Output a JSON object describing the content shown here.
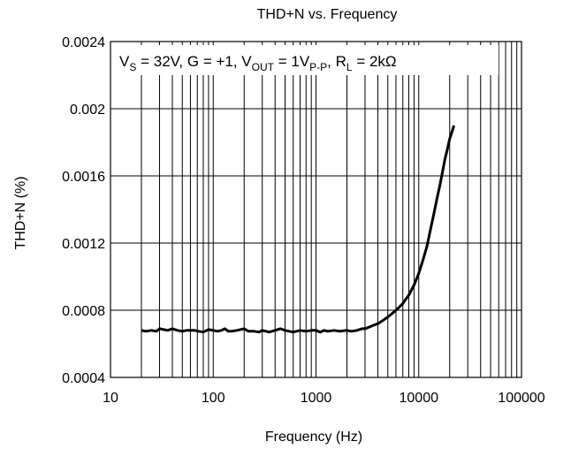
{
  "chart_data": {
    "type": "line",
    "title": "THD+N vs. Frequency",
    "xlabel": "Frequency (Hz)",
    "ylabel": "THD+N (%)",
    "xscale": "log",
    "xlim": [
      10,
      100000
    ],
    "ylim": [
      0.0004,
      0.0024
    ],
    "grid": true,
    "x_tick_labels": [
      "10",
      "100",
      "1000",
      "10000",
      "100000"
    ],
    "y_tick_labels": [
      "0.0004",
      "0.0008",
      "0.0012",
      "0.0016",
      "0.002",
      "0.0024"
    ],
    "annotation": {
      "vs": "V",
      "vs_sub": "S",
      "vs_val": " = 32V, G = +1, ",
      "vout": "V",
      "vout_sub": "OUT",
      "vout_val": " = 1V",
      "vpp_sub": "P-P",
      "rl_pre": ", ",
      "rl": "R",
      "rl_sub": "L",
      "rl_val": " = 2kΩ"
    },
    "series": [
      {
        "color": "#000000",
        "x": [
          20,
          22,
          25,
          28,
          30,
          33,
          36,
          40,
          45,
          50,
          55,
          60,
          66,
          72,
          80,
          90,
          100,
          110,
          120,
          130,
          140,
          150,
          170,
          200,
          220,
          250,
          280,
          300,
          350,
          400,
          450,
          500,
          550,
          600,
          700,
          800,
          900,
          1000,
          1100,
          1200,
          1300,
          1500,
          1700,
          2000,
          2200,
          2500,
          2800,
          3000,
          3300,
          3600,
          4000,
          4500,
          5000,
          5500,
          6000,
          6500,
          7000,
          8000,
          9000,
          10000,
          11000,
          12000,
          13000,
          14000,
          15000,
          16000,
          17000,
          18000,
          19000,
          20000,
          21000,
          22000
        ],
        "y": [
          0.00068,
          0.000675,
          0.00068,
          0.000675,
          0.00069,
          0.000685,
          0.00068,
          0.00069,
          0.00068,
          0.000675,
          0.00068,
          0.00068,
          0.00068,
          0.000675,
          0.00067,
          0.000685,
          0.00068,
          0.000675,
          0.00068,
          0.00069,
          0.000675,
          0.000675,
          0.00068,
          0.00069,
          0.000675,
          0.000675,
          0.00067,
          0.00068,
          0.00067,
          0.00068,
          0.00069,
          0.00068,
          0.000675,
          0.00067,
          0.00068,
          0.000675,
          0.00068,
          0.00068,
          0.00067,
          0.00068,
          0.000675,
          0.00068,
          0.000675,
          0.00068,
          0.000675,
          0.00068,
          0.00069,
          0.00069,
          0.0007,
          0.00071,
          0.00072,
          0.00074,
          0.00076,
          0.00078,
          0.0008,
          0.00082,
          0.00084,
          0.00089,
          0.00095,
          0.00102,
          0.0011,
          0.00118,
          0.00128,
          0.00137,
          0.00146,
          0.00154,
          0.00162,
          0.0017,
          0.00176,
          0.00182,
          0.00186,
          0.0019
        ]
      }
    ]
  }
}
